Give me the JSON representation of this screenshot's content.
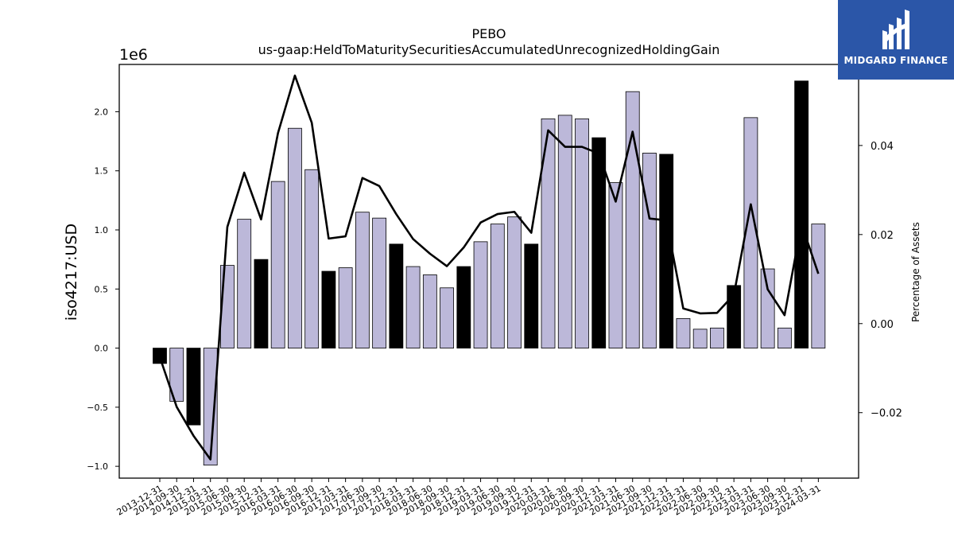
{
  "brand": {
    "name": "MIDGARD FINANCE",
    "bg_color": "#2b56a8"
  },
  "chart_data": {
    "type": "bar",
    "title": "PEBO",
    "subtitle": "us-gaap:HeldToMaturitySecuritiesAccumulatedUnrecognizedHoldingGain",
    "ylabel": "iso4217:USD",
    "y2label": "Percentage of Assets",
    "y_offset_label": "1e6",
    "y_scale": 1000000,
    "ylim": [
      -1.1,
      2.4
    ],
    "y2lim": [
      -0.0347,
      0.0582
    ],
    "yticks": [
      -1.0,
      -0.5,
      0.0,
      0.5,
      1.0,
      1.5,
      2.0
    ],
    "y2ticks": [
      -0.02,
      0.0,
      0.02,
      0.04
    ],
    "colors": {
      "bar_default": "#bcb8d9",
      "bar_highlight": "#000000",
      "line": "#000000"
    },
    "categories": [
      "2013-12-31",
      "2014-09-30",
      "2014-12-31",
      "2015-03-31",
      "2015-06-30",
      "2015-09-30",
      "2015-12-31",
      "2016-03-31",
      "2016-06-30",
      "2016-09-30",
      "2016-12-31",
      "2017-03-31",
      "2017-06-30",
      "2017-09-30",
      "2017-12-31",
      "2018-03-31",
      "2018-06-30",
      "2018-09-30",
      "2018-12-31",
      "2019-03-31",
      "2019-06-30",
      "2019-09-30",
      "2019-12-31",
      "2020-03-31",
      "2020-06-30",
      "2020-09-30",
      "2020-12-31",
      "2021-03-31",
      "2021-06-30",
      "2021-09-30",
      "2021-12-31",
      "2022-03-31",
      "2022-06-30",
      "2022-09-30",
      "2022-12-31",
      "2023-03-31",
      "2023-06-30",
      "2023-09-30",
      "2023-12-31",
      "2024-03-31"
    ],
    "series": [
      {
        "values": [
          -130000,
          -450000,
          -650000,
          -990000,
          700000,
          1090000,
          750000,
          1410000,
          1860000,
          1510000,
          650000,
          680000,
          1150000,
          1100000,
          880000,
          690000,
          620000,
          510000,
          690000,
          900000,
          1050000,
          1110000,
          880000,
          1940000,
          1970000,
          1940000,
          1780000,
          1400000,
          2170000,
          1650000,
          1640000,
          250000,
          160000,
          170000,
          530000,
          1950000,
          670000,
          170000,
          2260000,
          1050000
        ],
        "highlight": [
          true,
          false,
          true,
          false,
          false,
          false,
          true,
          false,
          false,
          false,
          true,
          false,
          false,
          false,
          true,
          false,
          false,
          false,
          true,
          false,
          false,
          false,
          true,
          false,
          false,
          false,
          true,
          false,
          false,
          false,
          true,
          false,
          false,
          false,
          true,
          false,
          false,
          false,
          true,
          false
        ]
      },
      {
        "axis": "right",
        "values": [
          -0.0075,
          -0.0187,
          -0.0252,
          -0.0305,
          0.0217,
          0.0339,
          0.0234,
          0.0428,
          0.0557,
          0.0451,
          0.0191,
          0.0196,
          0.0327,
          0.0309,
          0.0246,
          0.019,
          0.0157,
          0.0129,
          0.0171,
          0.0227,
          0.0246,
          0.0251,
          0.0204,
          0.0434,
          0.0397,
          0.0397,
          0.0382,
          0.0274,
          0.0431,
          0.0236,
          0.0232,
          0.0034,
          0.0023,
          0.0024,
          0.0065,
          0.0268,
          0.0077,
          0.0019,
          0.0224,
          0.0112
        ]
      }
    ]
  }
}
